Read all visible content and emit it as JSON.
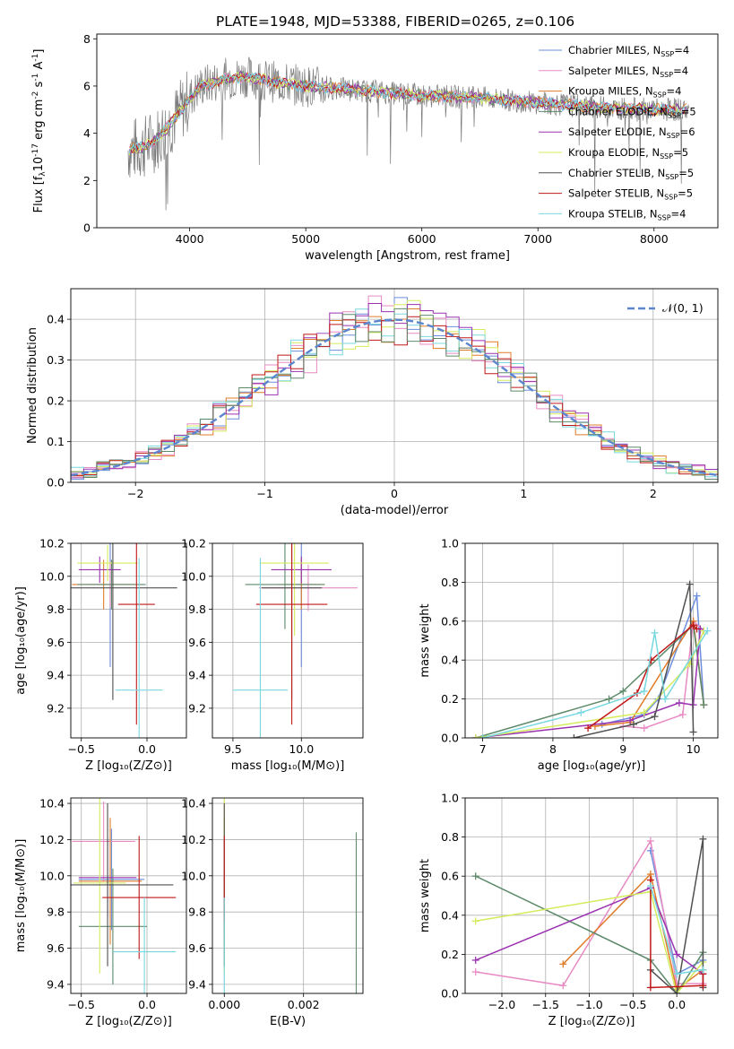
{
  "figure_title": "PLATE=1948, MJD=53388, FIBERID=0265, z=0.106",
  "model_colors": [
    "#6C8EDC",
    "#E88BC4",
    "#E07B28",
    "#5E8A6B",
    "#9A32B0",
    "#D4EC5C",
    "#505050",
    "#C01818",
    "#78D8E0"
  ],
  "chart_data": [
    {
      "id": "spectrum",
      "type": "line",
      "xlabel": "wavelength [Angstrom, rest frame]",
      "ylabel_parts": [
        "Flux [f",
        "λ",
        "10",
        "-17",
        " erg cm",
        "-2",
        " s",
        "-1",
        " A",
        "-1",
        "]"
      ],
      "xlim": [
        3200,
        8550
      ],
      "ylim": [
        0,
        8.2
      ],
      "xticks": [
        4000,
        5000,
        6000,
        7000,
        8000
      ],
      "yticks": [
        0,
        2,
        4,
        6,
        8
      ],
      "grid": false,
      "legend_position": "top-right",
      "series": [
        {
          "name": "Chabrier MILES, N",
          "sub": "SSP",
          "tail": "=4"
        },
        {
          "name": "Salpeter MILES, N",
          "sub": "SSP",
          "tail": "=4"
        },
        {
          "name": "Kroupa MILES, N",
          "sub": "SSP",
          "tail": "=4"
        },
        {
          "name": "Chabrier ELODIE, N",
          "sub": "SSP",
          "tail": "=5"
        },
        {
          "name": "Salpeter ELODIE, N",
          "sub": "SSP",
          "tail": "=6"
        },
        {
          "name": "Kroupa ELODIE, N",
          "sub": "SSP",
          "tail": "=5"
        },
        {
          "name": "Chabrier STELIB, N",
          "sub": "SSP",
          "tail": "=5"
        },
        {
          "name": "Salpeter STELIB, N",
          "sub": "SSP",
          "tail": "=5"
        },
        {
          "name": "Kroupa STELIB, N",
          "sub": "SSP",
          "tail": "=4"
        }
      ],
      "continuum": [
        [
          3470,
          3.3
        ],
        [
          3600,
          3.4
        ],
        [
          3700,
          3.7
        ],
        [
          3800,
          4.2
        ],
        [
          3900,
          4.8
        ],
        [
          4000,
          5.5
        ],
        [
          4100,
          6.0
        ],
        [
          4300,
          6.3
        ],
        [
          4500,
          6.4
        ],
        [
          4700,
          6.2
        ],
        [
          5000,
          6.0
        ],
        [
          5500,
          5.8
        ],
        [
          6000,
          5.6
        ],
        [
          6500,
          5.5
        ],
        [
          7000,
          5.3
        ],
        [
          7500,
          5.1
        ],
        [
          8000,
          5.0
        ],
        [
          8300,
          5.0
        ]
      ]
    },
    {
      "id": "residuals",
      "type": "histogram",
      "xlabel": "(data-model)/error",
      "ylabel": "Normed distribution",
      "xlim": [
        -2.5,
        2.5
      ],
      "ylim": [
        0,
        0.475
      ],
      "xticks": [
        -2,
        -1,
        0,
        1,
        2
      ],
      "yticks": [
        0.0,
        0.1,
        0.2,
        0.3,
        0.4
      ],
      "grid": true,
      "legend_position": "top-right",
      "reference_curve": {
        "label": "𝒩(0, 1)",
        "mean": 0,
        "sigma": 1
      },
      "bin_width": 0.1
    },
    {
      "id": "age_vs_Z",
      "type": "scatter",
      "xlabel": "Z [log₁₀(Z/Z⊙)]",
      "ylabel": "age  [log₁₀(age/yr)]",
      "xlim": [
        -0.58,
        0.3
      ],
      "ylim": [
        9.02,
        10.2
      ],
      "xticks": [
        -0.5,
        0.0
      ],
      "yticks": [
        9.2,
        9.4,
        9.6,
        9.8,
        10.0,
        10.2
      ],
      "grid": true,
      "points": [
        [
          -0.28,
          9.95,
          0.02,
          0.5
        ],
        [
          -0.28,
          9.95,
          0.17,
          0.14
        ],
        [
          -0.33,
          9.95,
          0.24,
          0.15
        ],
        [
          -0.27,
          9.95,
          0.26,
          0.15
        ],
        [
          -0.36,
          10.04,
          0.16,
          0.08
        ],
        [
          -0.3,
          10.08,
          0.23,
          0.11
        ],
        [
          -0.26,
          9.93,
          0.49,
          0.68
        ],
        [
          -0.08,
          9.83,
          0.14,
          0.73
        ],
        [
          -0.06,
          9.31,
          0.18,
          0.8
        ]
      ]
    },
    {
      "id": "age_vs_mass",
      "type": "scatter",
      "xlabel": "mass [log₁₀(M/M⊙)]",
      "ylabel": "",
      "xlim": [
        9.35,
        10.45
      ],
      "ylim": [
        9.02,
        10.2
      ],
      "xticks": [
        9.5,
        10.0
      ],
      "yticks": [
        9.2,
        9.4,
        9.6,
        9.8,
        10.0,
        10.2
      ],
      "grid": true,
      "points": [
        [
          10.0,
          9.95,
          0.11,
          0.5
        ],
        [
          10.05,
          9.93,
          0.36,
          0.14
        ],
        [
          10.0,
          9.95,
          0.17,
          0.15
        ],
        [
          9.88,
          9.95,
          0.29,
          0.27
        ],
        [
          10.0,
          10.04,
          0.22,
          0.08
        ],
        [
          9.95,
          10.08,
          0.25,
          0.44
        ],
        [
          9.93,
          9.93,
          0.22,
          0.68
        ],
        [
          9.93,
          9.83,
          0.26,
          0.73
        ],
        [
          9.7,
          9.31,
          0.2,
          0.8
        ]
      ]
    },
    {
      "id": "weight_vs_age",
      "type": "line",
      "xlabel": "age  [log₁₀(age/yr)]",
      "ylabel": "mass weight",
      "xlim": [
        6.75,
        10.35
      ],
      "ylim": [
        0,
        1.0
      ],
      "xticks": [
        7,
        8,
        9,
        10
      ],
      "yticks": [
        0.0,
        0.2,
        0.4,
        0.6,
        0.8,
        1.0
      ],
      "grid": true,
      "series": [
        [
          [
            8.7,
            0.07
          ],
          [
            9.3,
            0.12
          ],
          [
            9.5,
            0.2
          ],
          [
            10.05,
            0.73
          ],
          [
            10.15,
            0.17
          ]
        ],
        [
          [
            9.0,
            0.06
          ],
          [
            9.3,
            0.05
          ],
          [
            9.85,
            0.12
          ],
          [
            10.0,
            0.6
          ],
          [
            10.15,
            0.55
          ]
        ],
        [
          [
            8.6,
            0.06
          ],
          [
            9.1,
            0.08
          ],
          [
            10.0,
            0.6
          ],
          [
            10.15,
            0.17
          ]
        ],
        [
          [
            6.9,
            0.0
          ],
          [
            8.8,
            0.2
          ],
          [
            9.0,
            0.24
          ],
          [
            10.0,
            0.58
          ],
          [
            10.15,
            0.17
          ]
        ],
        [
          [
            6.9,
            0.0
          ],
          [
            9.1,
            0.09
          ],
          [
            9.8,
            0.18
          ],
          [
            10.0,
            0.17
          ],
          [
            10.1,
            0.56
          ]
        ],
        [
          [
            6.9,
            0.0
          ],
          [
            9.3,
            0.13
          ],
          [
            9.95,
            0.38
          ],
          [
            10.15,
            0.55
          ]
        ],
        [
          [
            8.3,
            0.0
          ],
          [
            9.15,
            0.07
          ],
          [
            9.45,
            0.11
          ],
          [
            9.95,
            0.79
          ],
          [
            10.0,
            0.03
          ]
        ],
        [
          [
            8.5,
            0.05
          ],
          [
            9.2,
            0.23
          ],
          [
            9.4,
            0.4
          ],
          [
            10.0,
            0.58
          ],
          [
            10.05,
            0.56
          ]
        ],
        [
          [
            7.0,
            0.0
          ],
          [
            8.4,
            0.13
          ],
          [
            9.3,
            0.24
          ],
          [
            9.45,
            0.54
          ],
          [
            9.6,
            0.2
          ],
          [
            10.2,
            0.55
          ]
        ]
      ]
    },
    {
      "id": "mass_vs_Z",
      "type": "scatter",
      "xlabel": "Z [log₁₀(Z/Z⊙)]",
      "ylabel": "mass [log₁₀(M/M⊙)]",
      "xlim": [
        -0.58,
        0.3
      ],
      "ylim": [
        9.35,
        10.43
      ],
      "xticks": [
        -0.5,
        0.0
      ],
      "yticks": [
        9.4,
        9.6,
        9.8,
        10.0,
        10.2,
        10.4
      ],
      "grid": true,
      "points": [
        [
          -0.27,
          9.98,
          0.25,
          0.28
        ],
        [
          -0.33,
          10.19,
          0.24,
          0.22
        ],
        [
          -0.28,
          9.97,
          0.24,
          0.35
        ],
        [
          -0.26,
          9.72,
          0.26,
          0.32
        ],
        [
          -0.3,
          9.99,
          0.22,
          0.22
        ],
        [
          -0.36,
          9.96,
          0.2,
          0.5
        ],
        [
          -0.3,
          9.95,
          0.5,
          0.45
        ],
        [
          -0.06,
          9.88,
          0.28,
          0.34
        ],
        [
          -0.02,
          9.58,
          0.24,
          0.3
        ]
      ]
    },
    {
      "id": "mass_vs_ebv",
      "type": "scatter",
      "xlabel": "E(B-V)",
      "ylabel": "",
      "xlim": [
        -0.0003,
        0.0035
      ],
      "ylim": [
        9.35,
        10.43
      ],
      "xticks": [
        0.0,
        0.002
      ],
      "xticklabels": [
        "0.000",
        "0.002"
      ],
      "yticks": [
        9.4,
        9.6,
        9.8,
        10.0,
        10.2,
        10.4
      ],
      "grid": true,
      "points": [
        [
          0.0,
          9.98,
          0,
          0.28
        ],
        [
          0.0,
          10.19,
          0,
          0.22
        ],
        [
          0.0,
          9.97,
          0,
          0.35
        ],
        [
          0.00333,
          9.72,
          0,
          0.52
        ],
        [
          0.0,
          9.99,
          0,
          0.22
        ],
        [
          0.0,
          9.96,
          0,
          0.5
        ],
        [
          0.0,
          9.95,
          0,
          0.45
        ],
        [
          0.0,
          9.98,
          0,
          0.24
        ],
        [
          0.0,
          9.58,
          0,
          0.3
        ]
      ]
    },
    {
      "id": "weight_vs_Z",
      "type": "line",
      "xlabel": "Z [log₁₀(Z/Z⊙)]",
      "ylabel": "mass weight",
      "xlim": [
        -2.42,
        0.47
      ],
      "ylim": [
        0,
        1.0
      ],
      "xticks": [
        -2.0,
        -1.5,
        -1.0,
        -0.5,
        0.0
      ],
      "yticks": [
        0.0,
        0.2,
        0.4,
        0.6,
        0.8,
        1.0
      ],
      "grid": true,
      "series": [
        [
          [
            -0.3,
            0.73
          ],
          [
            0.0,
            0.1
          ],
          [
            0.3,
            0.17
          ]
        ],
        [
          [
            -2.3,
            0.11
          ],
          [
            -1.3,
            0.04
          ],
          [
            -0.3,
            0.78
          ],
          [
            0.0,
            0.05
          ],
          [
            0.3,
            0.05
          ]
        ],
        [
          [
            -1.3,
            0.15
          ],
          [
            -0.3,
            0.61
          ],
          [
            0.0,
            0.02
          ],
          [
            0.3,
            0.12
          ]
        ],
        [
          [
            -2.3,
            0.6
          ],
          [
            -0.3,
            0.17
          ],
          [
            0.0,
            0.0
          ],
          [
            0.3,
            0.21
          ]
        ],
        [
          [
            -2.3,
            0.17
          ],
          [
            -0.3,
            0.54
          ],
          [
            0.0,
            0.2
          ],
          [
            0.3,
            0.1
          ]
        ],
        [
          [
            -2.3,
            0.37
          ],
          [
            -0.3,
            0.52
          ],
          [
            0.0,
            0.0
          ],
          [
            0.3,
            0.16
          ]
        ],
        [
          [
            -0.3,
            0.12
          ],
          [
            0.0,
            0.0
          ],
          [
            0.3,
            0.79
          ],
          [
            0.3,
            0.03
          ]
        ],
        [
          [
            -0.3,
            0.58
          ],
          [
            -0.3,
            0.03
          ],
          [
            0.3,
            0.04
          ],
          [
            0.3,
            0.1
          ]
        ],
        [
          [
            -0.3,
            0.55
          ],
          [
            0.0,
            0.1
          ],
          [
            0.3,
            0.12
          ]
        ]
      ]
    }
  ]
}
